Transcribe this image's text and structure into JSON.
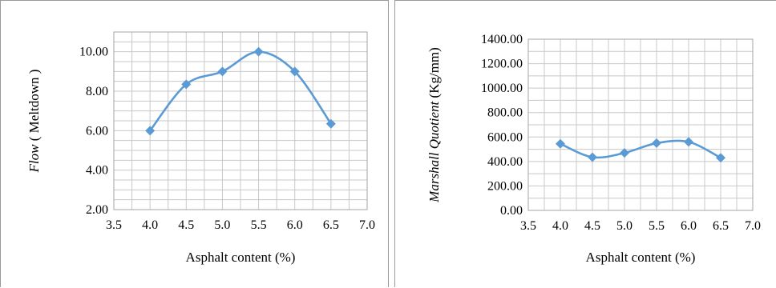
{
  "chart_data": [
    {
      "type": "line",
      "title": "",
      "xlabel": "Asphalt content (%)",
      "ylabel_italic": "Flow",
      "ylabel_rest": " ( Meltdown )",
      "x_ticks": [
        "3.5",
        "4.0",
        "4.5",
        "5.0",
        "5.5",
        "6.0",
        "6.5",
        "7.0"
      ],
      "y_ticks": [
        "2.00",
        "4.00",
        "6.00",
        "8.00",
        "10.00"
      ],
      "xlim": [
        3.5,
        7.0
      ],
      "ylim": [
        2.0,
        11.0
      ],
      "x_minor_step": 0.25,
      "y_minor_step": 0.5,
      "grid": true,
      "line_color": "#5b9bd5",
      "marker": "diamond",
      "smooth": true,
      "series": [
        {
          "x": [
            4.0,
            4.5,
            5.0,
            5.5,
            6.0,
            6.5
          ],
          "y": [
            6.0,
            8.35,
            9.0,
            10.0,
            9.0,
            6.35
          ]
        }
      ]
    },
    {
      "type": "line",
      "title": "",
      "xlabel": "Asphalt content (%)",
      "ylabel_italic": "Marshall Quotient",
      "ylabel_rest": " (Kg/mm)",
      "x_ticks": [
        "3.5",
        "4.0",
        "4.5",
        "5.0",
        "5.5",
        "6.0",
        "6.5",
        "7.0"
      ],
      "y_ticks": [
        "0.00",
        "200.00",
        "400.00",
        "600.00",
        "800.00",
        "1000.00",
        "1200.00",
        "1400.00"
      ],
      "xlim": [
        3.5,
        7.0
      ],
      "ylim": [
        0,
        1400
      ],
      "x_minor_step": 0.25,
      "y_minor_step": 100,
      "grid": true,
      "line_color": "#5b9bd5",
      "marker": "diamond",
      "smooth": true,
      "series": [
        {
          "x": [
            4.0,
            4.5,
            5.0,
            5.5,
            6.0,
            6.5
          ],
          "y": [
            545,
            435,
            470,
            550,
            560,
            430
          ]
        }
      ]
    }
  ]
}
